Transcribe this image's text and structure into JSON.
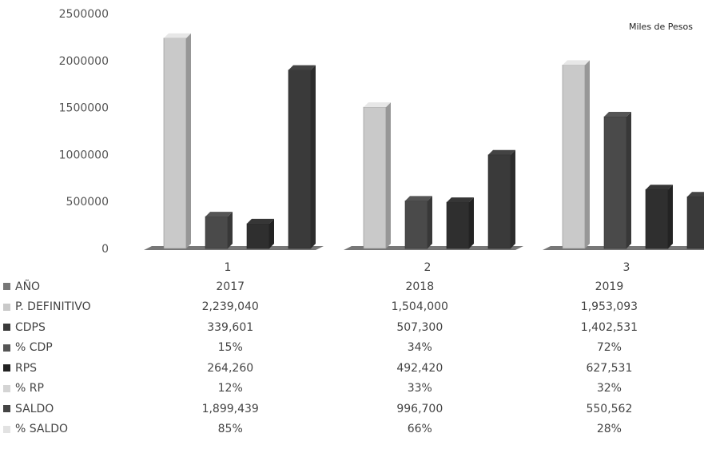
{
  "chart_data": {
    "type": "bar",
    "note": "Miles de Pesos",
    "categories": [
      "1",
      "2",
      "3"
    ],
    "ylim": [
      0,
      2500000
    ],
    "yticks": [
      "0",
      "500000",
      "1000000",
      "1500000",
      "2000000",
      "2500000"
    ],
    "series": [
      {
        "name": "P. DEFINITIVO",
        "values": [
          2239040,
          1504000,
          1953093
        ],
        "color": "#c9c9c9"
      },
      {
        "name": "CDPS",
        "values": [
          339601,
          507300,
          1402531
        ],
        "color": "#4a4a4a"
      },
      {
        "name": "RPS",
        "values": [
          264260,
          492420,
          627531
        ],
        "color": "#2f2f2f"
      },
      {
        "name": "SALDO",
        "values": [
          1899439,
          996700,
          550562
        ],
        "color": "#3a3a3a"
      }
    ],
    "table": {
      "rows": [
        {
          "label": "AÑO",
          "values": [
            "2017",
            "2018",
            "2019"
          ],
          "color": "#777777"
        },
        {
          "label": "P.  DEFINITIVO",
          "values": [
            "2,239,040",
            "1,504,000",
            "1,953,093"
          ],
          "color": "#c9c9c9"
        },
        {
          "label": "CDPS",
          "values": [
            "339,601",
            "507,300",
            "1,402,531"
          ],
          "color": "#3a3a3a"
        },
        {
          "label": "% CDP",
          "values": [
            "15%",
            "34%",
            "72%"
          ],
          "color": "#555555"
        },
        {
          "label": "RPS",
          "values": [
            "264,260",
            "492,420",
            "627,531"
          ],
          "color": "#222222"
        },
        {
          "label": "% RP",
          "values": [
            "12%",
            "33%",
            "32%"
          ],
          "color": "#d4d4d4"
        },
        {
          "label": "SALDO",
          "values": [
            "1,899,439",
            "996,700",
            "550,562"
          ],
          "color": "#444444"
        },
        {
          "label": "% SALDO",
          "values": [
            "85%",
            "66%",
            "28%"
          ],
          "color": "#e2e2e2"
        }
      ]
    }
  }
}
